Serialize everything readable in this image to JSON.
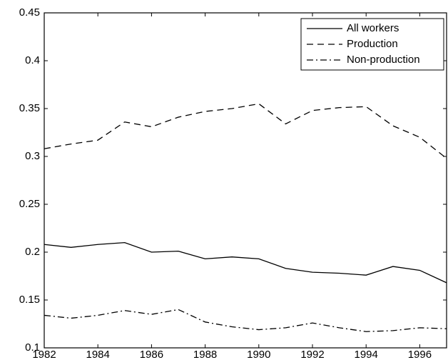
{
  "chart_data": {
    "type": "line",
    "x": [
      1982,
      1983,
      1984,
      1985,
      1986,
      1987,
      1988,
      1989,
      1990,
      1991,
      1992,
      1993,
      1994,
      1995,
      1996,
      1997
    ],
    "series": [
      {
        "name": "All workers",
        "color": "#000000",
        "style": "solid",
        "values": [
          0.208,
          0.205,
          0.208,
          0.21,
          0.2,
          0.201,
          0.193,
          0.195,
          0.193,
          0.183,
          0.179,
          0.178,
          0.176,
          0.185,
          0.181,
          0.168
        ]
      },
      {
        "name": "Production",
        "color": "#000000",
        "style": "dashed",
        "values": [
          0.308,
          0.313,
          0.317,
          0.336,
          0.331,
          0.341,
          0.347,
          0.35,
          0.355,
          0.334,
          0.348,
          0.351,
          0.352,
          0.332,
          0.32,
          0.298
        ]
      },
      {
        "name": "Non-production",
        "color": "#000000",
        "style": "dashdot",
        "values": [
          0.134,
          0.131,
          0.134,
          0.139,
          0.135,
          0.14,
          0.127,
          0.122,
          0.119,
          0.121,
          0.126,
          0.121,
          0.117,
          0.118,
          0.121,
          0.12
        ]
      }
    ],
    "xlim": [
      1982,
      1997
    ],
    "xticks": [
      1982,
      1984,
      1986,
      1988,
      1990,
      1992,
      1994,
      1996
    ],
    "ylim": [
      0.1,
      0.45
    ],
    "yticks": [
      0.1,
      0.15,
      0.2,
      0.25,
      0.3,
      0.35,
      0.4,
      0.45
    ],
    "legend": "upper-right",
    "grid": false
  }
}
